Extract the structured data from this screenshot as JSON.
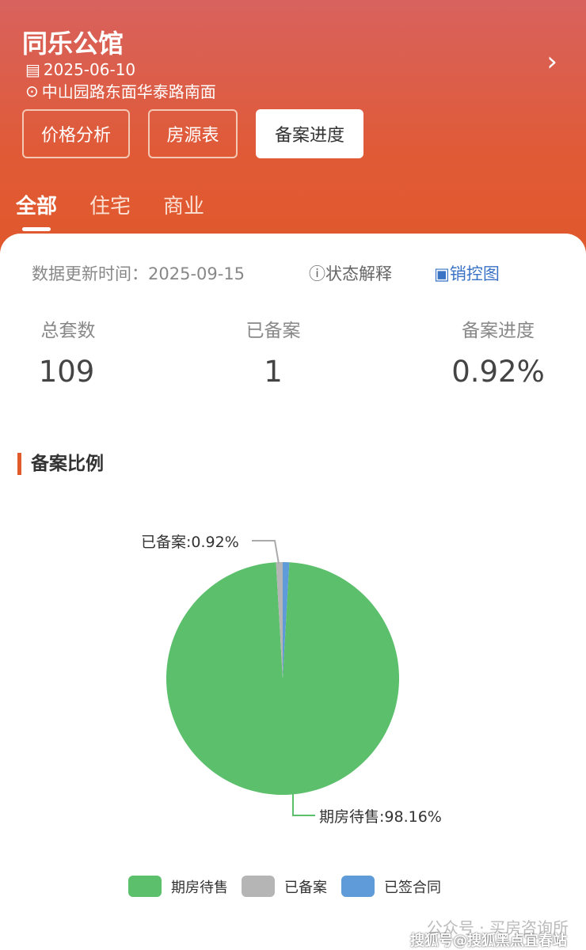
{
  "header": {
    "title": "同乐公馆",
    "date": "2025-06-10",
    "address": "中山园路东面华泰路南面",
    "buttons": [
      "价格分析",
      "房源表",
      "备案进度"
    ],
    "tabs": [
      "全部",
      "住宅",
      "商业"
    ]
  },
  "update": {
    "label": "数据更新时间：2025-09-15",
    "status_help": "状态解释",
    "sales_map": "销控图"
  },
  "stats": [
    {
      "label": "总套数",
      "value": "109"
    },
    {
      "label": "已备案",
      "value": "1"
    },
    {
      "label": "备案进度",
      "value": "0.92%"
    }
  ],
  "section_title": "备案比例",
  "chart_data": {
    "type": "pie",
    "slices": [
      {
        "name": "期房待售",
        "value": 98.16,
        "color": "#5bbf6b",
        "label": "期房待售:98.16%"
      },
      {
        "name": "已备案",
        "value": 0.92,
        "color": "#b5b5b5",
        "label": "已备案:0.92%"
      },
      {
        "name": "已签合同",
        "value": 0.92,
        "color": "#5e9bd8"
      }
    ],
    "legend": "bottom"
  },
  "watermark": {
    "line1": "公众号 · 买房咨询所",
    "line2": "搜狐号@搜狐黑点宜春站"
  }
}
